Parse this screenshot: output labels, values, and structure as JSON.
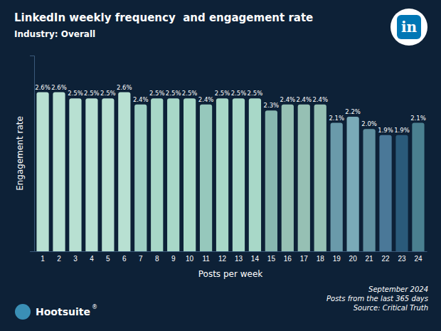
{
  "chart_data": {
    "type": "bar",
    "title": "LinkedIn weekly frequency  and engagement rate",
    "subtitle": "Industry: Overall",
    "xlabel": "Posts per week",
    "ylabel": "Engagement rate",
    "categories": [
      1,
      2,
      3,
      4,
      5,
      6,
      7,
      8,
      9,
      10,
      11,
      12,
      13,
      14,
      15,
      16,
      17,
      18,
      19,
      20,
      21,
      22,
      23,
      24
    ],
    "values": [
      2.6,
      2.6,
      2.5,
      2.5,
      2.5,
      2.6,
      2.4,
      2.5,
      2.5,
      2.5,
      2.4,
      2.5,
      2.5,
      2.5,
      2.3,
      2.4,
      2.4,
      2.4,
      2.1,
      2.2,
      2.0,
      1.9,
      1.9,
      2.1
    ],
    "value_labels": [
      "2.6%",
      "2.6%",
      "2.5%",
      "2.5%",
      "2.5%",
      "2.6%",
      "2.4%",
      "2.5%",
      "2.5%",
      "2.5%",
      "2.4%",
      "2.5%",
      "2.5%",
      "2.5%",
      "2.3%",
      "2.4%",
      "2.4%",
      "2.4%",
      "2.1%",
      "2.2%",
      "2.0%",
      "1.9%",
      "1.9%",
      "2.1%"
    ],
    "colors": [
      "#b8e0d2",
      "#b8e0d2",
      "#b8e0d2",
      "#b8e0d2",
      "#b8e0d2",
      "#b8e0d2",
      "#9ecfc4",
      "#a8d8c8",
      "#a8d8c8",
      "#a8d8c8",
      "#96c8bc",
      "#a8d8c8",
      "#a8d8c8",
      "#a8d8c8",
      "#88b8b0",
      "#96c0b4",
      "#96c0b4",
      "#96c0b4",
      "#6a9aaa",
      "#7aaab8",
      "#6090a0",
      "#4a7898",
      "#2a5a7a",
      "#4a8090"
    ],
    "ylim": [
      0,
      3.2
    ],
    "yticks": [],
    "data_labels": true,
    "tick_labels": "x",
    "annotations": [
      "September 2024",
      "Posts from the last 365 days",
      "Source: Critical Truth",
      "Hootsuite",
      "®",
      "in"
    ]
  }
}
